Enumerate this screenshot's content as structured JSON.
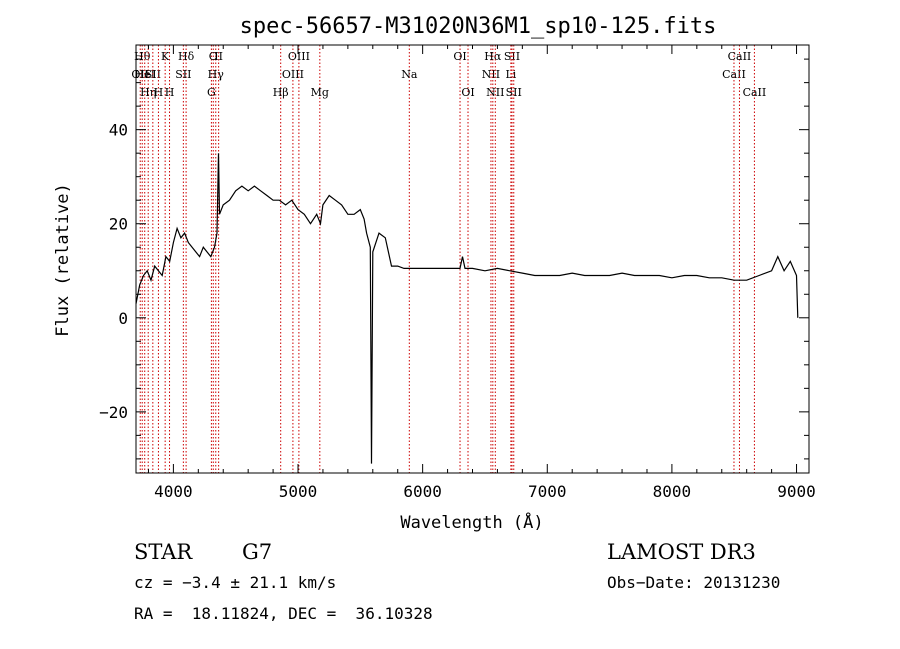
{
  "chart_data": {
    "type": "line",
    "title": "spec-56657-M31020N36M1_sp10-125.fits",
    "xlabel": "Wavelength (Å)",
    "ylabel": "Flux (relative)",
    "xlim": [
      3700,
      9100
    ],
    "ylim": [
      -33,
      58
    ],
    "x_ticks": [
      4000,
      5000,
      6000,
      7000,
      8000,
      9000
    ],
    "x_tick_labels": [
      "4000",
      "5000",
      "6000",
      "7000",
      "8000",
      "9000"
    ],
    "y_ticks": [
      -20,
      0,
      20,
      40
    ],
    "y_tick_labels": [
      "−20",
      "0",
      "20",
      "40"
    ],
    "grid": false,
    "line_color": "#000000",
    "marker_color": "#cc0000",
    "series": [
      {
        "x": [
          3700,
          3730,
          3760,
          3790,
          3820,
          3850,
          3880,
          3910,
          3940,
          3970,
          4000,
          4030,
          4060,
          4090,
          4120,
          4150,
          4180,
          4210,
          4240,
          4270,
          4300,
          4330,
          4350,
          4362,
          4370,
          4400,
          4450,
          4500,
          4550,
          4600,
          4650,
          4700,
          4750,
          4800,
          4850,
          4900,
          4950,
          5000,
          5050,
          5100,
          5150,
          5180,
          5200,
          5250,
          5300,
          5350,
          5400,
          5450,
          5500,
          5530,
          5550,
          5580,
          5590,
          5600,
          5650,
          5700,
          5750,
          5800,
          5850,
          5900,
          6000,
          6100,
          6200,
          6300,
          6320,
          6340,
          6400,
          6500,
          6600,
          6700,
          6800,
          6900,
          7000,
          7100,
          7200,
          7300,
          7400,
          7500,
          7600,
          7700,
          7800,
          7900,
          8000,
          8100,
          8200,
          8300,
          8400,
          8500,
          8600,
          8700,
          8800,
          8850,
          8900,
          8950,
          9000,
          9010
        ],
        "y": [
          3,
          7,
          9,
          10,
          8,
          11,
          10,
          9,
          13,
          12,
          16,
          19,
          17,
          18,
          16,
          15,
          14,
          13,
          15,
          14,
          13,
          15,
          18,
          35,
          22,
          24,
          25,
          27,
          28,
          27,
          28,
          27,
          26,
          25,
          25,
          24,
          25,
          23,
          22,
          20,
          22,
          20,
          24,
          26,
          25,
          24,
          22,
          22,
          23,
          21,
          18,
          15,
          -31,
          14,
          18,
          17,
          11,
          11,
          10.5,
          10.5,
          10.5,
          10.5,
          10.5,
          10.5,
          13,
          10.5,
          10.5,
          10,
          10.5,
          10,
          9.5,
          9,
          9,
          9,
          9.5,
          9,
          9,
          9,
          9.5,
          9,
          9,
          9,
          8.5,
          9,
          9,
          8.5,
          8.5,
          8,
          8,
          9,
          10,
          13,
          10,
          12,
          9,
          0
        ]
      }
    ],
    "lines": [
      {
        "x": 3734,
        "label": "OII",
        "row": 1
      },
      {
        "x": 3750,
        "label": "Hθ",
        "row": 0
      },
      {
        "x": 3770,
        "label": "HeI",
        "row": 1
      },
      {
        "x": 3798,
        "label": "Hη",
        "row": 2
      },
      {
        "x": 3835,
        "label": "SII",
        "row": 1
      },
      {
        "x": 3880,
        "label": "H",
        "row": 2
      },
      {
        "x": 3934,
        "label": "K",
        "row": 0
      },
      {
        "x": 3969,
        "label": "H",
        "row": 2
      },
      {
        "x": 4102,
        "label": "Hδ",
        "row": 0
      },
      {
        "x": 4080,
        "label": "SII",
        "row": 1
      },
      {
        "x": 4305,
        "label": "G",
        "row": 2
      },
      {
        "x": 4320,
        "label": "O",
        "row": 0
      },
      {
        "x": 4340,
        "label": "Hγ",
        "row": 1
      },
      {
        "x": 4363,
        "label": "II",
        "row": 0
      },
      {
        "x": 4861,
        "label": "Hβ",
        "row": 2
      },
      {
        "x": 4959,
        "label": "OIII",
        "row": 1
      },
      {
        "x": 5007,
        "label": "OIII",
        "row": 0
      },
      {
        "x": 5175,
        "label": "Mg",
        "row": 2
      },
      {
        "x": 5893,
        "label": "Na",
        "row": 1
      },
      {
        "x": 6300,
        "label": "OI",
        "row": 0
      },
      {
        "x": 6364,
        "label": "OI",
        "row": 2
      },
      {
        "x": 6548,
        "label": "NII",
        "row": 1
      },
      {
        "x": 6563,
        "label": "Hα",
        "row": 0
      },
      {
        "x": 6583,
        "label": "NII",
        "row": 2
      },
      {
        "x": 6708,
        "label": "Li",
        "row": 1
      },
      {
        "x": 6717,
        "label": "SII",
        "row": 0
      },
      {
        "x": 6731,
        "label": "SII",
        "row": 2
      },
      {
        "x": 8498,
        "label": "CaII",
        "row": 1
      },
      {
        "x": 8542,
        "label": "CaII",
        "row": 0
      },
      {
        "x": 8662,
        "label": "CaII",
        "row": 2
      }
    ]
  },
  "info": {
    "class_label": "STAR",
    "subclass": "G7",
    "cz": "cz = −3.4 ± 21.1 km/s",
    "coords": "RA =  18.11824, DEC =  36.10328",
    "survey": "LAMOST DR3",
    "obs_date": "Obs−Date: 20131230"
  }
}
